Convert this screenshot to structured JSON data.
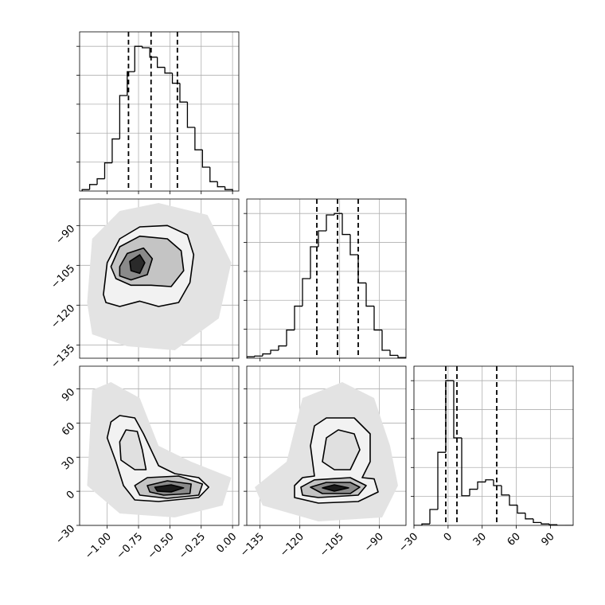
{
  "chart_data": [
    {
      "type": "histogram",
      "bins": [
        -1.2,
        -1.14,
        -1.08,
        -1.02,
        -0.96,
        -0.9,
        -0.84,
        -0.78,
        -0.72,
        -0.66,
        -0.6,
        -0.54,
        -0.48,
        -0.42,
        -0.36,
        -0.3,
        -0.24,
        -0.18,
        -0.12,
        -0.06,
        0.0
      ],
      "values": [
        10,
        45,
        85,
        195,
        360,
        660,
        825,
        1000,
        990,
        925,
        855,
        815,
        745,
        615,
        440,
        285,
        165,
        65,
        30,
        10
      ],
      "quantiles": [
        -0.83,
        -0.65,
        -0.44
      ],
      "color": "#000000",
      "xlim": [
        -1.22,
        0.05
      ],
      "ylim": [
        0,
        1100
      ],
      "xticks": [
        -1.0,
        -0.75,
        -0.5,
        -0.25,
        0.0
      ],
      "yticks": [
        200,
        400,
        600,
        800,
        1000
      ],
      "grid": true
    },
    {
      "type": "contour",
      "xlim": [
        -1.22,
        0.05
      ],
      "ylim": [
        -140,
        -80
      ],
      "xticks": [
        -1.0,
        -0.75,
        -0.5,
        -0.25,
        0.0
      ],
      "yticks": [
        {
          "value": -135,
          "label": "−135"
        },
        {
          "value": -120,
          "label": "−120"
        },
        {
          "value": -105,
          "label": "−105"
        },
        {
          "value": -90,
          "label": "−90"
        }
      ],
      "grid": true,
      "levels": [
        {
          "color": "#e3e3e3",
          "outline": false,
          "points": [
            [
              -1.16,
              -119
            ],
            [
              -1.12,
              -95
            ],
            [
              -0.9,
              -84.5
            ],
            [
              -0.59,
              -81.5
            ],
            [
              -0.2,
              -86
            ],
            [
              -0.01,
              -104
            ],
            [
              -0.11,
              -125
            ],
            [
              -0.46,
              -137
            ],
            [
              -0.84,
              -135.5
            ],
            [
              -1.12,
              -131
            ]
          ]
        },
        {
          "color": "#f2f2f2",
          "outline": true,
          "points": [
            [
              -1.03,
              -116
            ],
            [
              -1.0,
              -104
            ],
            [
              -0.9,
              -95
            ],
            [
              -0.74,
              -90.5
            ],
            [
              -0.52,
              -90
            ],
            [
              -0.36,
              -93.5
            ],
            [
              -0.31,
              -101
            ],
            [
              -0.34,
              -111.5
            ],
            [
              -0.43,
              -119
            ],
            [
              -0.59,
              -120.5
            ],
            [
              -0.74,
              -118.5
            ],
            [
              -0.9,
              -120.5
            ],
            [
              -1.01,
              -119
            ]
          ]
        },
        {
          "color": "#c4c4c4",
          "outline": true,
          "points": [
            [
              -0.97,
              -105.5
            ],
            [
              -0.9,
              -98
            ],
            [
              -0.74,
              -94
            ],
            [
              -0.52,
              -95
            ],
            [
              -0.41,
              -99.5
            ],
            [
              -0.39,
              -107
            ],
            [
              -0.49,
              -113
            ],
            [
              -0.65,
              -112.5
            ],
            [
              -0.81,
              -112.5
            ],
            [
              -0.93,
              -110
            ]
          ]
        },
        {
          "color": "#8a8a8a",
          "outline": true,
          "points": [
            [
              -0.9,
              -105.5
            ],
            [
              -0.84,
              -100.5
            ],
            [
              -0.71,
              -98.5
            ],
            [
              -0.64,
              -102.5
            ],
            [
              -0.68,
              -108.5
            ],
            [
              -0.81,
              -110.5
            ],
            [
              -0.9,
              -109
            ]
          ]
        },
        {
          "color": "#2a2a2a",
          "outline": true,
          "points": [
            [
              -0.82,
              -103.5
            ],
            [
              -0.74,
              -101
            ],
            [
              -0.7,
              -104
            ],
            [
              -0.74,
              -108
            ],
            [
              -0.81,
              -107
            ]
          ]
        }
      ]
    },
    {
      "type": "histogram",
      "bins": [
        -140,
        -137,
        -134,
        -131,
        -128,
        -125,
        -122,
        -119,
        -116,
        -113,
        -110,
        -107,
        -104,
        -101,
        -98,
        -95,
        -92,
        -89,
        -86,
        -83,
        -80
      ],
      "values": [
        10,
        15,
        30,
        55,
        85,
        195,
        360,
        550,
        770,
        880,
        990,
        1000,
        855,
        715,
        520,
        360,
        195,
        55,
        20,
        5
      ],
      "quantiles": [
        -113.6,
        -105.8,
        -98
      ],
      "color": "#000000",
      "xlim": [
        -140,
        -80
      ],
      "ylim": [
        0,
        1100
      ],
      "xticks": [
        -135,
        -120,
        -105,
        -90
      ],
      "yticks": [
        200,
        400,
        600,
        800,
        1000
      ],
      "grid": true
    },
    {
      "type": "contour",
      "xlim": [
        -1.22,
        0.05
      ],
      "ylim": [
        -30,
        110
      ],
      "xticks": [
        {
          "value": -1.0,
          "label": "−1.00"
        },
        {
          "value": -0.75,
          "label": "−0.75"
        },
        {
          "value": -0.5,
          "label": "−0.50"
        },
        {
          "value": -0.25,
          "label": "−0.25"
        },
        {
          "value": 0.0,
          "label": "0.00"
        }
      ],
      "yticks": [
        {
          "value": -30,
          "label": "−30"
        },
        0,
        30,
        60,
        90
      ],
      "grid": true,
      "levels": [
        {
          "color": "#e3e3e3",
          "outline": false,
          "points": [
            [
              -1.12,
              89
            ],
            [
              -0.97,
              96
            ],
            [
              -0.74,
              82
            ],
            [
              -0.59,
              40
            ],
            [
              -0.33,
              26
            ],
            [
              -0.01,
              12
            ],
            [
              -0.08,
              -12.5
            ],
            [
              -0.46,
              -23
            ],
            [
              -0.9,
              -19.5
            ],
            [
              -1.16,
              5
            ]
          ]
        },
        {
          "color": "#f2f2f2",
          "outline": true,
          "points": [
            [
              -0.97,
              61
            ],
            [
              -0.9,
              66.6
            ],
            [
              -0.78,
              64.5
            ],
            [
              -0.71,
              50.5
            ],
            [
              -0.59,
              22.5
            ],
            [
              -0.46,
              15.5
            ],
            [
              -0.27,
              12
            ],
            [
              -0.19,
              3.6
            ],
            [
              -0.27,
              -5.5
            ],
            [
              -0.59,
              -9
            ],
            [
              -0.78,
              -7.6
            ],
            [
              -0.87,
              5
            ],
            [
              -0.93,
              26
            ],
            [
              -1.0,
              47
            ]
          ]
        },
        {
          "color": "#e0e0e0",
          "outline": true,
          "points": [
            [
              -0.9,
              43.5
            ],
            [
              -0.85,
              54
            ],
            [
              -0.76,
              52.6
            ],
            [
              -0.72,
              36.5
            ],
            [
              -0.69,
              19
            ],
            [
              -0.78,
              19
            ],
            [
              -0.89,
              27.4
            ]
          ]
        },
        {
          "color": "#c4c4c4",
          "outline": true,
          "points": [
            [
              -0.78,
              5
            ],
            [
              -0.68,
              12
            ],
            [
              -0.43,
              13.4
            ],
            [
              -0.24,
              6.4
            ],
            [
              -0.27,
              -3.4
            ],
            [
              -0.52,
              -6.2
            ],
            [
              -0.74,
              -3.4
            ]
          ]
        },
        {
          "color": "#8a8a8a",
          "outline": true,
          "points": [
            [
              -0.68,
              5
            ],
            [
              -0.52,
              9.2
            ],
            [
              -0.33,
              6.4
            ],
            [
              -0.34,
              -2
            ],
            [
              -0.55,
              -3.4
            ],
            [
              -0.66,
              -0.6
            ]
          ]
        },
        {
          "color": "#1a1a1a",
          "outline": true,
          "points": [
            [
              -0.62,
              3.6
            ],
            [
              -0.49,
              5.7
            ],
            [
              -0.39,
              3
            ],
            [
              -0.49,
              -0.6
            ],
            [
              -0.6,
              0.1
            ]
          ]
        }
      ]
    },
    {
      "type": "contour",
      "xlim": [
        -140,
        -80
      ],
      "ylim": [
        -30,
        110
      ],
      "xticks": [
        {
          "value": -135,
          "label": "−135"
        },
        {
          "value": -120,
          "label": "−120"
        },
        {
          "value": -105,
          "label": "−105"
        },
        {
          "value": -90,
          "label": "−90"
        }
      ],
      "yticks": [
        -30,
        0,
        30,
        60,
        90
      ],
      "grid": true,
      "levels": [
        {
          "color": "#e3e3e3",
          "outline": false,
          "points": [
            [
              -137,
              3.6
            ],
            [
              -125,
              26
            ],
            [
              -119,
              82
            ],
            [
              -104,
              96
            ],
            [
              -92,
              82
            ],
            [
              -86,
              40
            ],
            [
              -83,
              5
            ],
            [
              -89,
              -23
            ],
            [
              -113,
              -26.5
            ],
            [
              -134,
              -12.5
            ]
          ]
        },
        {
          "color": "#f2f2f2",
          "outline": true,
          "points": [
            [
              -122,
              5
            ],
            [
              -119,
              12
            ],
            [
              -114.5,
              13.4
            ],
            [
              -116,
              40
            ],
            [
              -114.5,
              57.5
            ],
            [
              -110,
              64.5
            ],
            [
              -99.5,
              64.5
            ],
            [
              -93.5,
              50.5
            ],
            [
              -93.5,
              26
            ],
            [
              -96.5,
              12
            ],
            [
              -92,
              10.9
            ],
            [
              -90.5,
              -0.6
            ],
            [
              -98,
              -9
            ],
            [
              -113,
              -10.4
            ],
            [
              -122,
              -5.5
            ]
          ]
        },
        {
          "color": "#e0e0e0",
          "outline": true,
          "points": [
            [
              -111.5,
              26
            ],
            [
              -110,
              47
            ],
            [
              -105.5,
              54
            ],
            [
              -99.5,
              50.5
            ],
            [
              -97.4,
              36.5
            ],
            [
              -101,
              19
            ],
            [
              -107,
              19
            ]
          ]
        },
        {
          "color": "#c4c4c4",
          "outline": true,
          "points": [
            [
              -119.6,
              3.6
            ],
            [
              -114.5,
              10
            ],
            [
              -101,
              12
            ],
            [
              -95,
              5
            ],
            [
              -98,
              -3.4
            ],
            [
              -113,
              -5.5
            ],
            [
              -119,
              -3.4
            ]
          ]
        },
        {
          "color": "#8a8a8a",
          "outline": true,
          "points": [
            [
              -116,
              3.6
            ],
            [
              -110,
              7.8
            ],
            [
              -101,
              7.8
            ],
            [
              -97.4,
              3.6
            ],
            [
              -101,
              -2
            ],
            [
              -111.5,
              -2
            ]
          ]
        },
        {
          "color": "#1a1a1a",
          "outline": true,
          "points": [
            [
              -111.5,
              3
            ],
            [
              -107,
              5.7
            ],
            [
              -101.6,
              3
            ],
            [
              -107,
              0.1
            ]
          ]
        }
      ]
    },
    {
      "type": "histogram",
      "bins": [
        -30,
        -23,
        -16,
        -9,
        -2,
        5,
        12,
        19,
        26,
        33,
        40,
        47,
        54,
        61,
        68,
        75,
        82,
        89,
        96,
        103,
        110
      ],
      "values": [
        0,
        10,
        110,
        505,
        1000,
        605,
        205,
        250,
        300,
        315,
        275,
        210,
        140,
        85,
        45,
        20,
        10,
        5,
        0,
        0
      ],
      "quantiles": [
        -2,
        7.8,
        42.8
      ],
      "color": "#000000",
      "xlim": [
        -30,
        110
      ],
      "ylim": [
        0,
        1100
      ],
      "xticks": [
        {
          "value": -30,
          "label": "−30"
        },
        0,
        30,
        60,
        90
      ],
      "yticks": [
        200,
        400,
        600,
        800,
        1000
      ],
      "grid": true
    }
  ]
}
